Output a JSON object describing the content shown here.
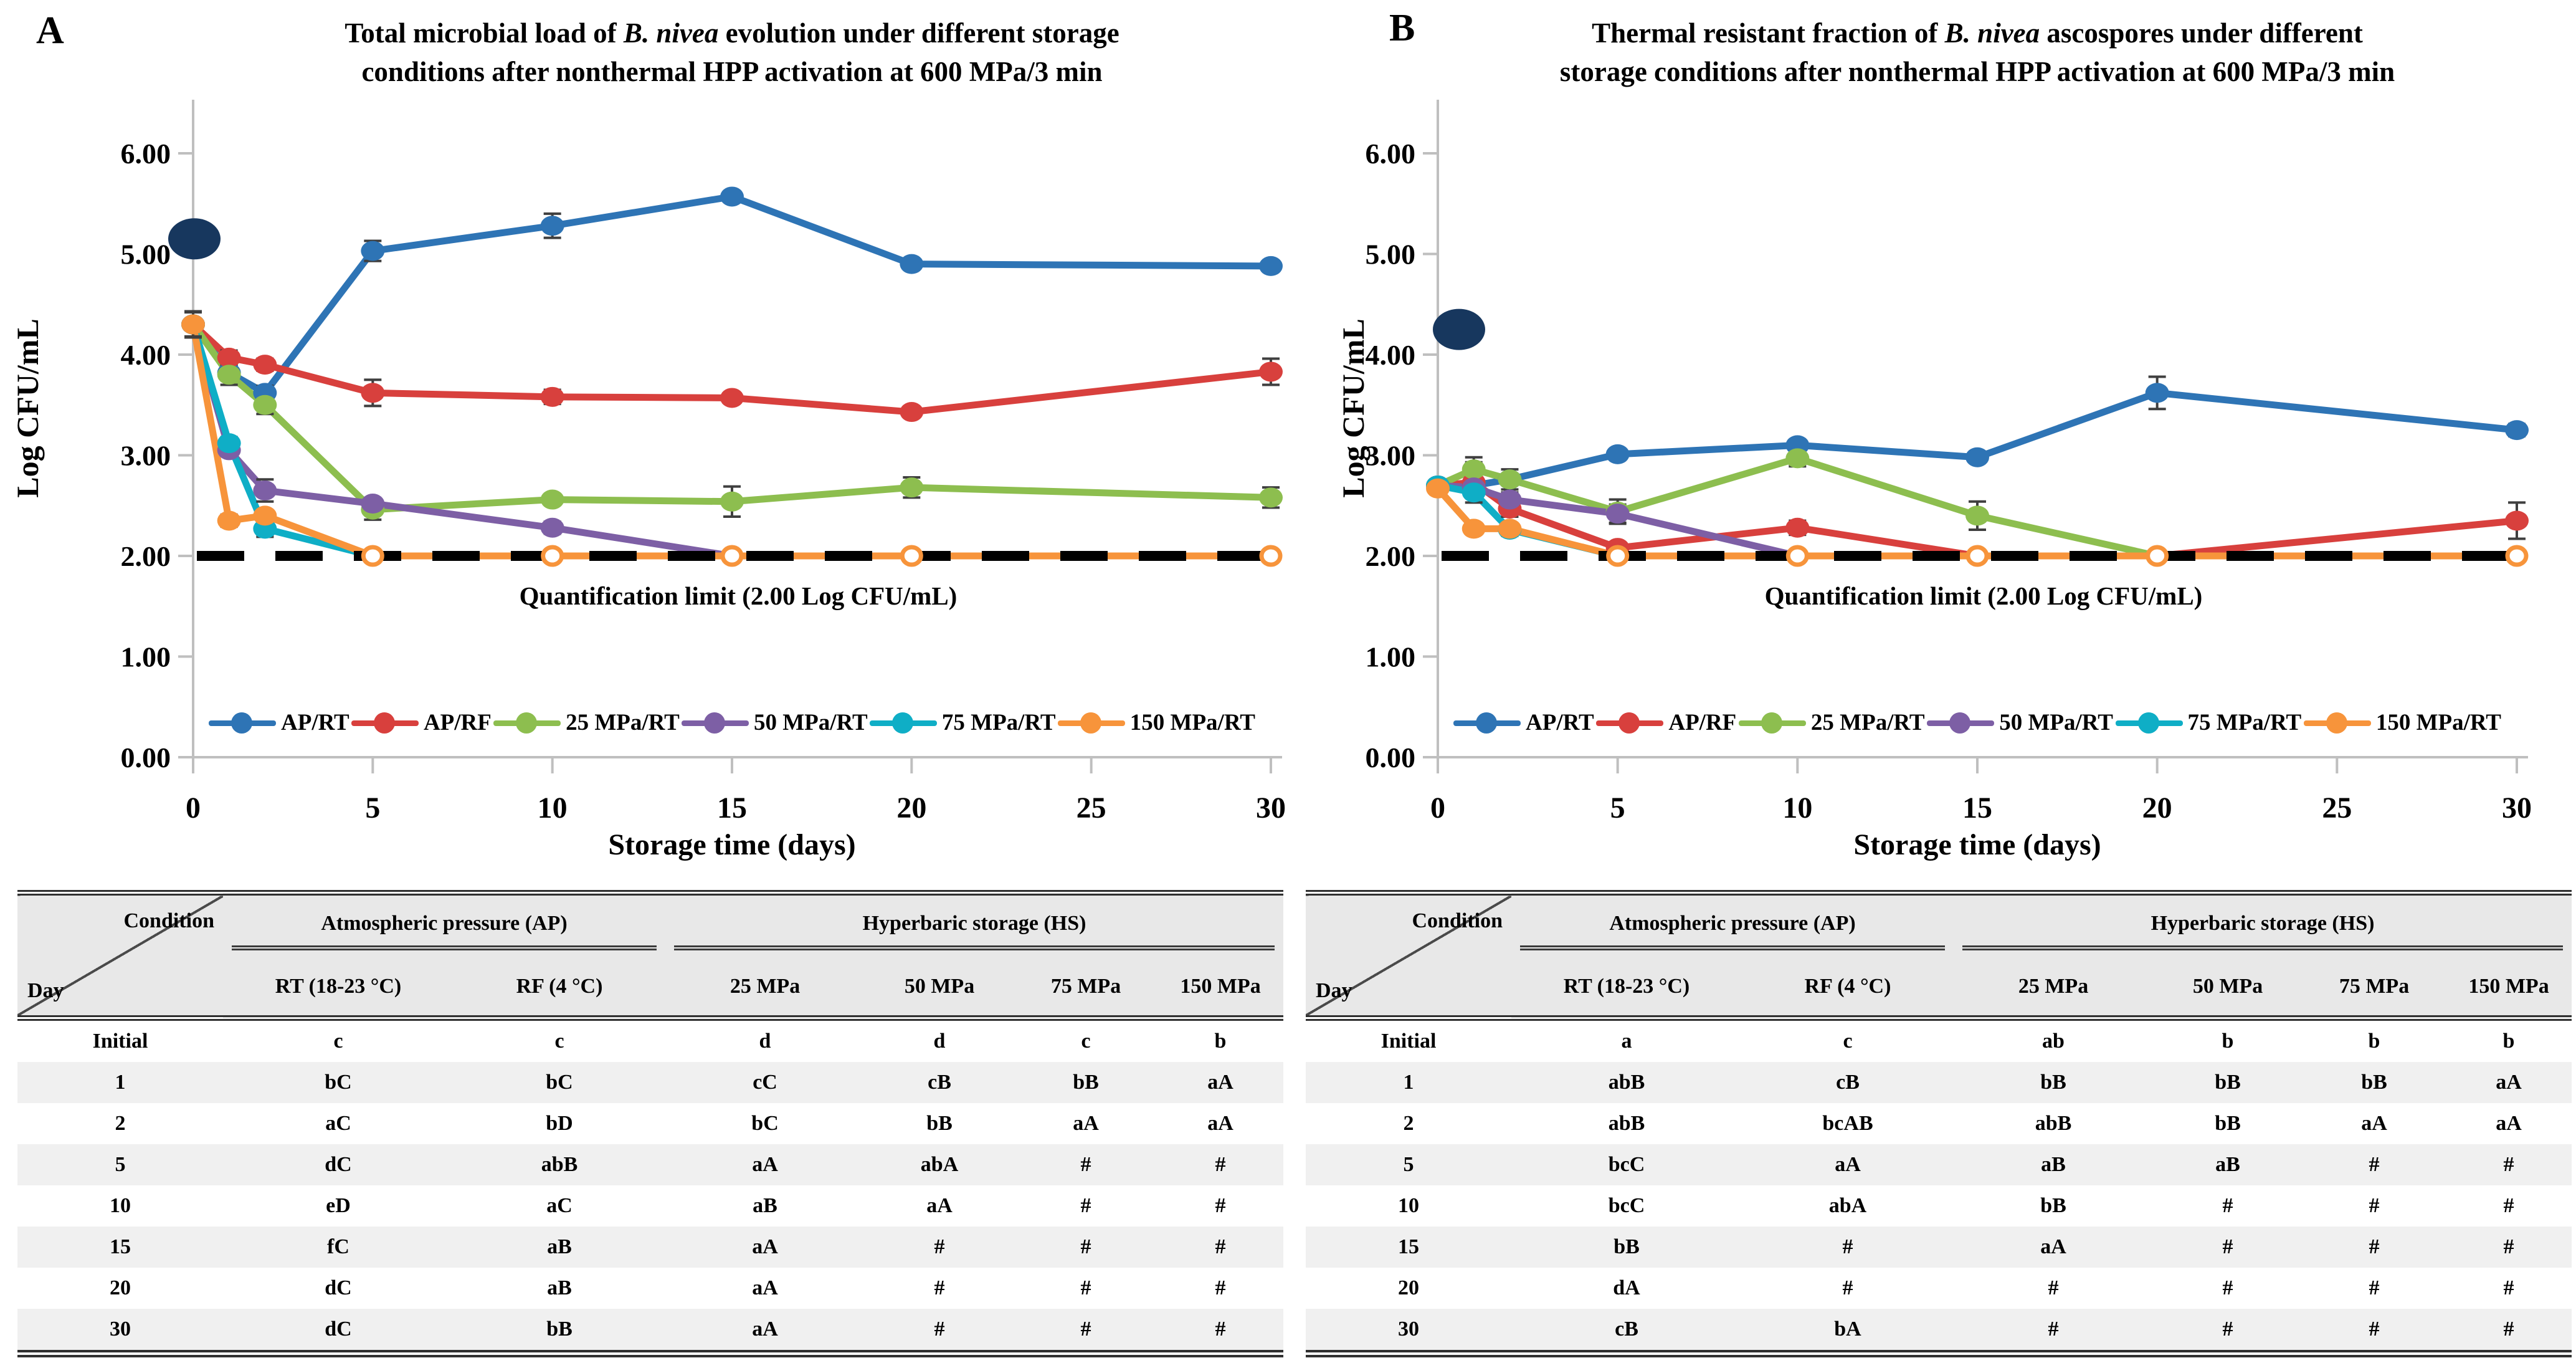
{
  "figure": {
    "panels": [
      {
        "letter": "A",
        "title_segments": [
          [
            {
              "text": "Total microbial load of ",
              "italic": false
            },
            {
              "text": "B. nivea",
              "italic": true
            },
            {
              "text": " evolution under different storage",
              "italic": false
            }
          ],
          [
            {
              "text": "conditions after nonthermal HPP activation at 600 MPa/3 min",
              "italic": false
            }
          ]
        ]
      },
      {
        "letter": "B",
        "title_segments": [
          [
            {
              "text": "Thermal resistant fraction of ",
              "italic": false
            },
            {
              "text": "B. nivea",
              "italic": true
            },
            {
              "text": " ascospores under different",
              "italic": false
            }
          ],
          [
            {
              "text": "storage conditions after nonthermal HPP activation at 600 MPa/3 min",
              "italic": false
            }
          ]
        ]
      }
    ]
  },
  "chart_data": [
    {
      "type": "line",
      "panel": "A",
      "title": "Total microbial load of B. nivea evolution under different storage conditions after nonthermal HPP activation at 600 MPa/3 min",
      "xlabel": "Storage time (days)",
      "ylabel": "Log CFU/mL",
      "annotation": "Quantification limit (2.00 Log CFU/mL)",
      "quantification_limit": 2.0,
      "x": [
        0,
        1,
        2,
        5,
        10,
        15,
        20,
        30
      ],
      "xticks": [
        0,
        5,
        10,
        15,
        20,
        25,
        30
      ],
      "ytick_labels": [
        "0.00",
        "1.00",
        "2.00",
        "3.00",
        "4.00",
        "5.00",
        "6.00"
      ],
      "ylim": [
        0,
        6.5
      ],
      "grid": false,
      "legend_position": "bottom",
      "initial_point": {
        "x": 0,
        "y": 5.15,
        "color": "#17375E"
      },
      "series": [
        {
          "name": "AP/RT",
          "color": "#2E74B5",
          "values": [
            4.3,
            3.82,
            3.62,
            5.03,
            5.28,
            5.57,
            4.9,
            4.88
          ],
          "err": [
            0.12,
            0,
            0.07,
            0.1,
            0.12,
            0.05,
            0.04,
            0.05
          ]
        },
        {
          "name": "AP/RF",
          "color": "#D8403D",
          "values": [
            4.3,
            3.97,
            3.9,
            3.62,
            3.58,
            3.57,
            3.43,
            3.83
          ],
          "err": [
            0,
            0.07,
            0.06,
            0.13,
            0.07,
            0.05,
            0.05,
            0.13
          ]
        },
        {
          "name": "25 MPa/RT",
          "color": "#8DBE4F",
          "values": [
            4.3,
            3.8,
            3.5,
            2.46,
            2.56,
            2.54,
            2.68,
            2.58
          ],
          "err": [
            0,
            0.1,
            0.09,
            0.1,
            0.05,
            0.15,
            0.1,
            0.1
          ]
        },
        {
          "name": "50 MPa/RT",
          "color": "#7D5FA5",
          "values": [
            4.3,
            3.05,
            2.65,
            2.52,
            2.28,
            2.0,
            2.0,
            2.0
          ],
          "err": [
            0,
            0,
            0.11,
            0.05,
            0.06,
            0,
            0,
            0
          ]
        },
        {
          "name": "75 MPa/RT",
          "color": "#0FAEC6",
          "values": [
            4.3,
            3.12,
            2.27,
            2.0,
            2.0,
            2.0,
            2.0,
            2.0
          ],
          "err": [
            0,
            0.06,
            0.08,
            0,
            0,
            0,
            0,
            0
          ]
        },
        {
          "name": "150 MPa/RT",
          "color": "#F7943B",
          "values": [
            4.3,
            2.35,
            2.4,
            2.0,
            2.0,
            2.0,
            2.0,
            2.0
          ],
          "err": [
            0.13,
            0.06,
            0.05,
            0,
            0,
            0,
            0,
            0
          ],
          "open_at_limit": true
        }
      ]
    },
    {
      "type": "line",
      "panel": "B",
      "title": "Thermal resistant fraction of B. nivea ascospores under different storage conditions after nonthermal HPP activation at 600 MPa/3 min",
      "xlabel": "Storage time (days)",
      "ylabel": "Log CFU/mL",
      "annotation": "Quantification limit (2.00 Log CFU/mL)",
      "quantification_limit": 2.0,
      "x": [
        0,
        1,
        2,
        5,
        10,
        15,
        20,
        30
      ],
      "xticks": [
        0,
        5,
        10,
        15,
        20,
        25,
        30
      ],
      "ytick_labels": [
        "0.00",
        "1.00",
        "2.00",
        "3.00",
        "4.00",
        "5.00",
        "6.00"
      ],
      "ylim": [
        0,
        6.5
      ],
      "grid": false,
      "legend_position": "bottom",
      "initial_point": {
        "x": 0,
        "y": 4.25,
        "color": "#17375E"
      },
      "series": [
        {
          "name": "AP/RT",
          "color": "#2E74B5",
          "values": [
            2.7,
            2.7,
            2.76,
            3.01,
            3.1,
            2.98,
            3.62,
            3.25
          ],
          "err": [
            0,
            0,
            0.05,
            0.05,
            0.05,
            0.05,
            0.16,
            0.06
          ]
        },
        {
          "name": "AP/RF",
          "color": "#D8403D",
          "values": [
            2.7,
            2.73,
            2.47,
            2.08,
            2.28,
            2.0,
            2.0,
            2.35
          ],
          "err": [
            0,
            0.2,
            0.08,
            0.05,
            0.07,
            0,
            0,
            0.18
          ]
        },
        {
          "name": "25 MPa/RT",
          "color": "#8DBE4F",
          "values": [
            2.7,
            2.86,
            2.76,
            2.44,
            2.97,
            2.4,
            2.0,
            2.0
          ],
          "err": [
            0,
            0.12,
            0.1,
            0.12,
            0.08,
            0.14,
            0,
            0
          ]
        },
        {
          "name": "50 MPa/RT",
          "color": "#7D5FA5",
          "values": [
            2.7,
            2.68,
            2.56,
            2.42,
            2.0,
            2.0,
            2.0,
            2.0
          ],
          "err": [
            0,
            0.05,
            0.07,
            0.09,
            0,
            0,
            0,
            0
          ]
        },
        {
          "name": "75 MPa/RT",
          "color": "#0FAEC6",
          "values": [
            2.7,
            2.63,
            2.26,
            2.0,
            2.0,
            2.0,
            2.0,
            2.0
          ],
          "err": [
            0,
            0.05,
            0.06,
            0,
            0,
            0,
            0,
            0
          ]
        },
        {
          "name": "150 MPa/RT",
          "color": "#F7943B",
          "values": [
            2.67,
            2.27,
            2.27,
            2.0,
            2.0,
            2.0,
            2.0,
            2.0
          ],
          "err": [
            0.05,
            0.05,
            0.05,
            0,
            0,
            0,
            0,
            0
          ],
          "open_at_limit": true
        }
      ]
    }
  ],
  "tables": [
    {
      "corner": {
        "top": "Condition",
        "bottom": "Day"
      },
      "groups": [
        {
          "label": "Atmospheric pressure (AP)",
          "columns": [
            "RT (18-23 °C)",
            "RF (4 °C)"
          ]
        },
        {
          "label": "Hyperbaric storage (HS)",
          "columns": [
            "25 MPa",
            "50 MPa",
            "75 MPa",
            "150 MPa"
          ]
        }
      ],
      "rows": [
        {
          "day": "Initial",
          "values": [
            "c",
            "c",
            "d",
            "d",
            "c",
            "b"
          ]
        },
        {
          "day": "1",
          "values": [
            "bC",
            "bC",
            "cC",
            "cB",
            "bB",
            "aA"
          ]
        },
        {
          "day": "2",
          "values": [
            "aC",
            "bD",
            "bC",
            "bB",
            "aA",
            "aA"
          ]
        },
        {
          "day": "5",
          "values": [
            "dC",
            "abB",
            "aA",
            "abA",
            "#",
            "#"
          ]
        },
        {
          "day": "10",
          "values": [
            "eD",
            "aC",
            "aB",
            "aA",
            "#",
            "#"
          ]
        },
        {
          "day": "15",
          "values": [
            "fC",
            "aB",
            "aA",
            "#",
            "#",
            "#"
          ]
        },
        {
          "day": "20",
          "values": [
            "dC",
            "aB",
            "aA",
            "#",
            "#",
            "#"
          ]
        },
        {
          "day": "30",
          "values": [
            "dC",
            "bB",
            "aA",
            "#",
            "#",
            "#"
          ]
        }
      ]
    },
    {
      "corner": {
        "top": "Condition",
        "bottom": "Day"
      },
      "groups": [
        {
          "label": "Atmospheric pressure (AP)",
          "columns": [
            "RT (18-23 °C)",
            "RF (4 °C)"
          ]
        },
        {
          "label": "Hyperbaric storage (HS)",
          "columns": [
            "25 MPa",
            "50 MPa",
            "75 MPa",
            "150 MPa"
          ]
        }
      ],
      "rows": [
        {
          "day": "Initial",
          "values": [
            "a",
            "c",
            "ab",
            "b",
            "b",
            "b"
          ]
        },
        {
          "day": "1",
          "values": [
            "abB",
            "cB",
            "bB",
            "bB",
            "bB",
            "aA"
          ]
        },
        {
          "day": "2",
          "values": [
            "abB",
            "bcAB",
            "abB",
            "bB",
            "aA",
            "aA"
          ]
        },
        {
          "day": "5",
          "values": [
            "bcC",
            "aA",
            "aB",
            "aB",
            "#",
            "#"
          ]
        },
        {
          "day": "10",
          "values": [
            "bcC",
            "abA",
            "bB",
            "#",
            "#",
            "#"
          ]
        },
        {
          "day": "15",
          "values": [
            "bB",
            "#",
            "aA",
            "#",
            "#",
            "#"
          ]
        },
        {
          "day": "20",
          "values": [
            "dA",
            "#",
            "#",
            "#",
            "#",
            "#"
          ]
        },
        {
          "day": "30",
          "values": [
            "cB",
            "bA",
            "#",
            "#",
            "#",
            "#"
          ]
        }
      ]
    }
  ],
  "colors": {
    "axis": "#bfbfbf",
    "error_bar": "#3f3f3f",
    "limit_line": "#000000",
    "initial_dot": "#17375E",
    "table_header_bg": "#e8e8e8",
    "table_stripe_bg": "#f0f0f0"
  }
}
